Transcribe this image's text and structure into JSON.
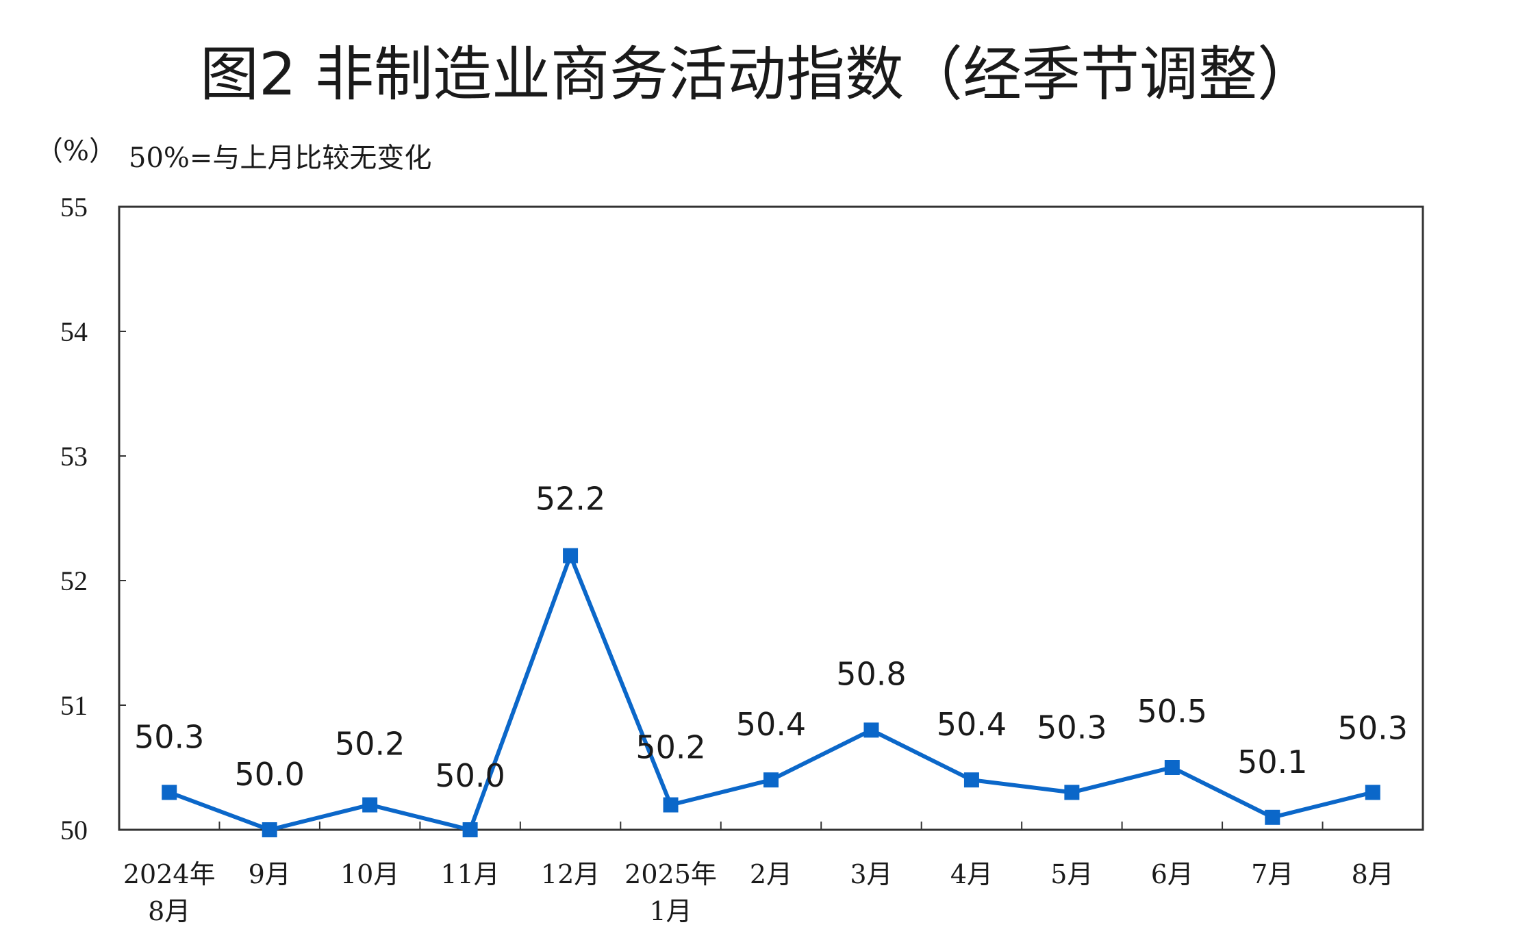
{
  "colors": {
    "series": "#0b67c9",
    "axis": "#333333",
    "text": "#1a1a1a"
  },
  "chart_data": {
    "type": "line",
    "title": "图2  非制造业商务活动指数（经季节调整）",
    "unit_label": "（%）",
    "note": "50%=与上月比较无变化",
    "categories": [
      [
        "2024年",
        "8月"
      ],
      [
        "9月"
      ],
      [
        "10月"
      ],
      [
        "11月"
      ],
      [
        "12月"
      ],
      [
        "2025年",
        "1月"
      ],
      [
        "2月"
      ],
      [
        "3月"
      ],
      [
        "4月"
      ],
      [
        "5月"
      ],
      [
        "6月"
      ],
      [
        "7月"
      ],
      [
        "8月"
      ]
    ],
    "values": [
      50.3,
      50.0,
      50.2,
      50.0,
      52.2,
      50.2,
      50.4,
      50.8,
      50.4,
      50.3,
      50.5,
      50.1,
      50.3
    ],
    "data_labels": [
      "50.3",
      "50.0",
      "50.2",
      "50.0",
      "52.2",
      "50.2",
      "50.4",
      "50.8",
      "50.4",
      "50.3",
      "50.5",
      "50.1",
      "50.3"
    ],
    "y_ticks": [
      "50",
      "51",
      "52",
      "53",
      "54",
      "55"
    ],
    "ylim": [
      50,
      55
    ],
    "grid": false,
    "legend": "none"
  }
}
